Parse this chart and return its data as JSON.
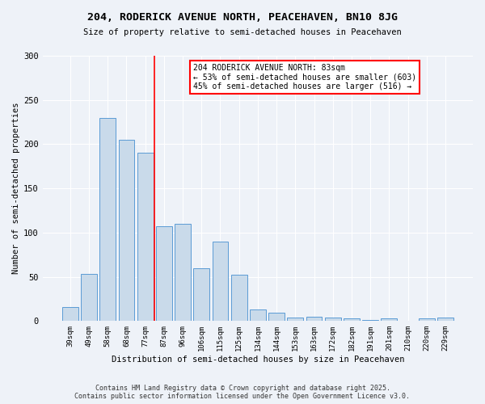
{
  "title": "204, RODERICK AVENUE NORTH, PEACEHAVEN, BN10 8JG",
  "subtitle": "Size of property relative to semi-detached houses in Peacehaven",
  "xlabel": "Distribution of semi-detached houses by size in Peacehaven",
  "ylabel": "Number of semi-detached properties",
  "categories": [
    "39sqm",
    "49sqm",
    "58sqm",
    "68sqm",
    "77sqm",
    "87sqm",
    "96sqm",
    "106sqm",
    "115sqm",
    "125sqm",
    "134sqm",
    "144sqm",
    "153sqm",
    "163sqm",
    "172sqm",
    "182sqm",
    "191sqm",
    "201sqm",
    "210sqm",
    "220sqm",
    "229sqm"
  ],
  "values": [
    16,
    53,
    230,
    205,
    190,
    107,
    110,
    60,
    90,
    52,
    13,
    9,
    4,
    5,
    4,
    3,
    1,
    3,
    0,
    3,
    4
  ],
  "bar_color": "#c9daea",
  "bar_edge_color": "#5b9bd5",
  "vline_x": 4.5,
  "vline_color": "red",
  "annotation_text": "204 RODERICK AVENUE NORTH: 83sqm\n← 53% of semi-detached houses are smaller (603)\n45% of semi-detached houses are larger (516) →",
  "annotation_box_color": "white",
  "annotation_box_edge_color": "red",
  "ylim": [
    0,
    300
  ],
  "yticks": [
    0,
    50,
    100,
    150,
    200,
    250,
    300
  ],
  "footnote": "Contains HM Land Registry data © Crown copyright and database right 2025.\nContains public sector information licensed under the Open Government Licence v3.0.",
  "background_color": "#eef2f8"
}
